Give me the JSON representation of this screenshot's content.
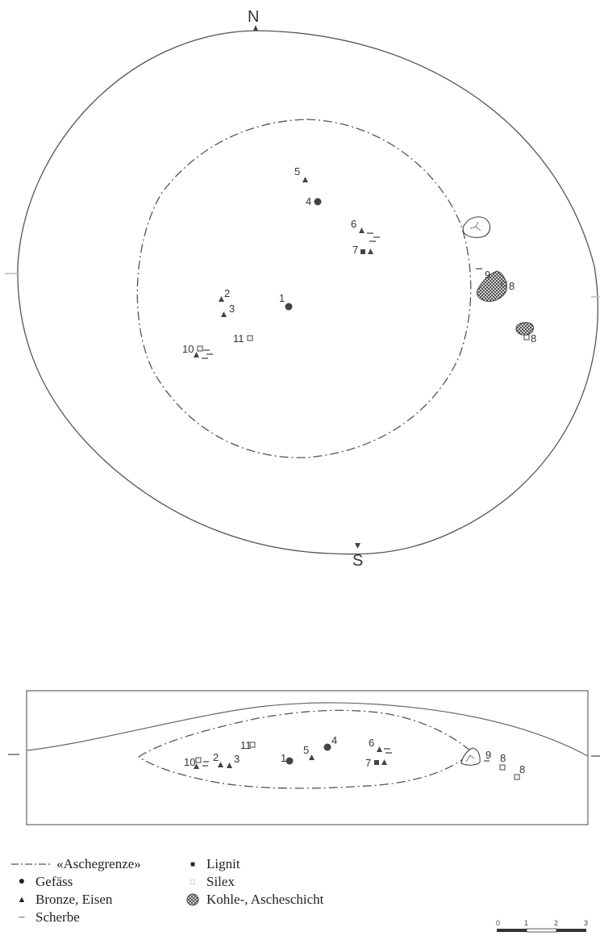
{
  "north_label": "N",
  "south_label": "S",
  "plan_labels": {
    "n1": "1",
    "n2": "2",
    "n3": "3",
    "n4": "4",
    "n5": "5",
    "n6": "6",
    "n7": "7",
    "n8a": "8",
    "n8b": "8",
    "n9": "9",
    "n10": "10",
    "n11": "11"
  },
  "section_labels": {
    "n1": "1",
    "n2": "2",
    "n3": "3",
    "n4": "4",
    "n5": "5",
    "n6": "6",
    "n7": "7",
    "n8a": "8",
    "n8b": "8",
    "n9": "9",
    "n10": "10",
    "n11": "11"
  },
  "legend": {
    "asche": "«Aschegrenze»",
    "gefaess": "Gefäss",
    "bronze": "Bronze, Eisen",
    "scherbe": "Scherbe",
    "lignit": "Lignit",
    "silex": "Silex",
    "kohle": "Kohle-, Ascheschicht"
  },
  "scale": {
    "t0": "0",
    "t1": "1",
    "t2": "2",
    "t3": "3"
  },
  "colors": {
    "line": "#555555",
    "symbol": "#444444",
    "faint": "#b8b8b8"
  }
}
